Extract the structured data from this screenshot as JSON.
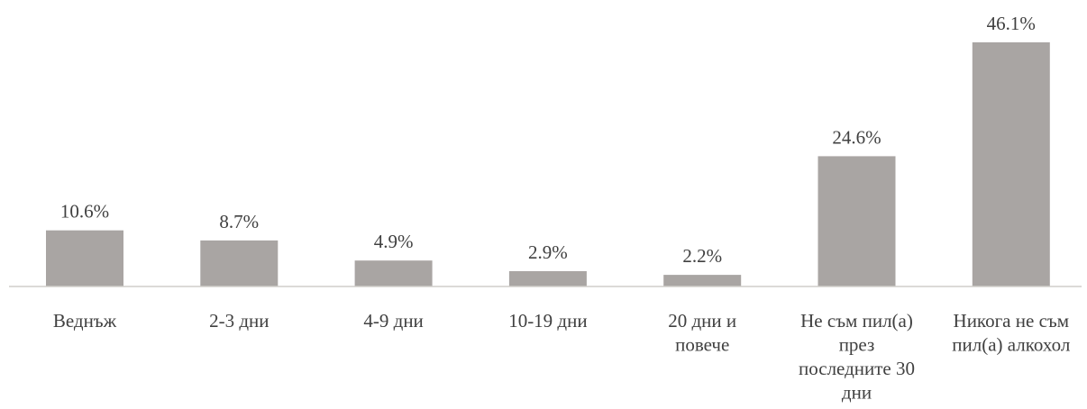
{
  "chart_data": {
    "type": "bar",
    "categories": [
      [
        "Веднъж"
      ],
      [
        "2-3 дни"
      ],
      [
        "4-9 дни"
      ],
      [
        "10-19 дни"
      ],
      [
        "20 дни и",
        "повече"
      ],
      [
        "Не съм пил(а)",
        "през",
        "последните 30",
        "дни"
      ],
      [
        "Никога не съм",
        "пил(а) алкохол"
      ]
    ],
    "values": [
      10.6,
      8.7,
      4.9,
      2.9,
      2.2,
      24.6,
      46.1
    ],
    "value_labels": [
      "10.6%",
      "8.7%",
      "4.9%",
      "2.9%",
      "2.2%",
      "24.6%",
      "46.1%"
    ],
    "bar_color": "#a9a5a3",
    "axis_color": "#d0cdca",
    "text_color": "#404040",
    "title": "",
    "xlabel": "",
    "ylabel": "",
    "ylim": [
      0,
      46.1
    ],
    "grid": false,
    "legend": "none"
  }
}
